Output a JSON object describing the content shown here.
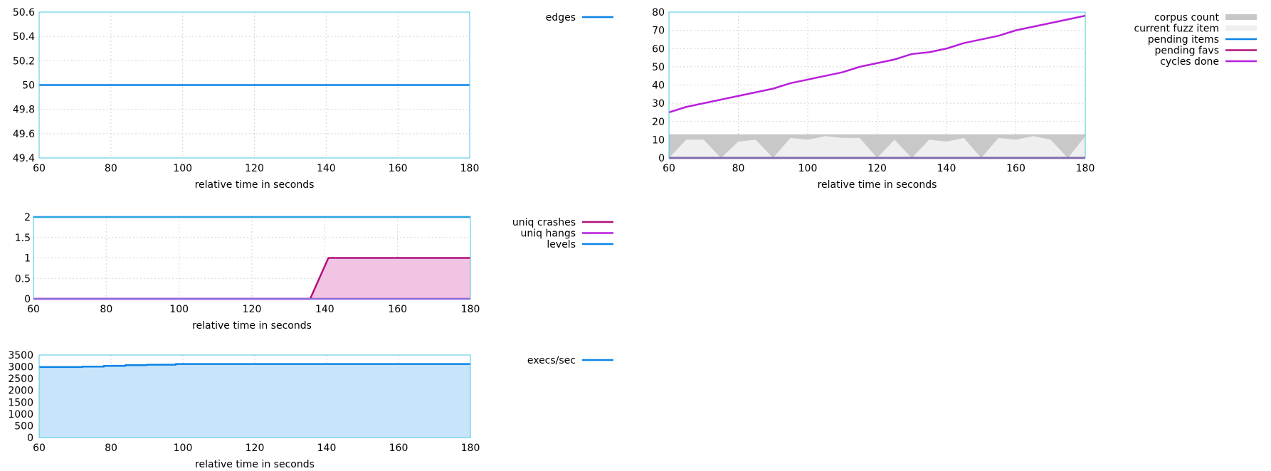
{
  "chart_data": [
    {
      "id": "edges",
      "type": "line",
      "xlabel": "relative time in seconds",
      "ylabel": "",
      "xlim": [
        60,
        180
      ],
      "ylim": [
        49.4,
        50.6
      ],
      "xticks": [
        "60",
        "80",
        "100",
        "120",
        "140",
        "160",
        "180"
      ],
      "yticks": [
        "50.6",
        "50.4",
        "50.2",
        "50",
        "49.8",
        "49.6",
        "49.4"
      ],
      "grid": true,
      "legend_position": "right",
      "series": [
        {
          "name": "edges",
          "color": "#0a84e8",
          "fill": false,
          "x": [
            60,
            180
          ],
          "y": [
            50,
            50
          ]
        }
      ]
    },
    {
      "id": "corpus",
      "type": "line",
      "xlabel": "relative time in seconds",
      "ylabel": "",
      "xlim": [
        60,
        180
      ],
      "ylim": [
        0,
        80
      ],
      "xticks": [
        "60",
        "80",
        "100",
        "120",
        "140",
        "160",
        "180"
      ],
      "yticks": [
        "80",
        "70",
        "60",
        "50",
        "40",
        "30",
        "20",
        "10",
        "0"
      ],
      "grid": true,
      "legend_position": "right",
      "series": [
        {
          "name": "corpus count",
          "color": "#c8c8c8",
          "fill": true,
          "x": [
            60,
            180
          ],
          "y": [
            13,
            13
          ]
        },
        {
          "name": "current fuzz item",
          "color": "#efefef",
          "fill": true,
          "x": [
            60,
            65,
            70,
            75,
            80,
            85,
            90,
            95,
            100,
            105,
            110,
            115,
            120,
            125,
            130,
            135,
            140,
            145,
            150,
            155,
            160,
            165,
            170,
            175,
            180
          ],
          "y": [
            0,
            10,
            10,
            0,
            9,
            10,
            0,
            11,
            10,
            12,
            11,
            11,
            0,
            10,
            0,
            10,
            9,
            11,
            0,
            11,
            10,
            12,
            10,
            0,
            12
          ]
        },
        {
          "name": "pending items",
          "color": "#0a84e8",
          "fill": false,
          "x": [
            60,
            180
          ],
          "y": [
            0,
            0
          ]
        },
        {
          "name": "pending favs",
          "color": "#b0107a",
          "fill": false,
          "x": [
            60,
            180
          ],
          "y": [
            0,
            0
          ]
        },
        {
          "name": "cycles done",
          "color": "#b91fdc",
          "fill": false,
          "x": [
            60,
            65,
            70,
            75,
            80,
            85,
            90,
            95,
            100,
            105,
            110,
            115,
            120,
            125,
            130,
            135,
            140,
            145,
            150,
            155,
            160,
            165,
            170,
            175,
            180
          ],
          "y": [
            25,
            28,
            30,
            32,
            34,
            36,
            38,
            41,
            43,
            45,
            47,
            50,
            52,
            54,
            57,
            58,
            60,
            63,
            65,
            67,
            70,
            72,
            74,
            76,
            78
          ]
        }
      ]
    },
    {
      "id": "crashes",
      "type": "line",
      "xlabel": "relative time in seconds",
      "ylabel": "",
      "xlim": [
        60,
        180
      ],
      "ylim": [
        0,
        2
      ],
      "xticks": [
        "60",
        "80",
        "100",
        "120",
        "140",
        "160",
        "180"
      ],
      "yticks": [
        "2",
        "1.5",
        "1",
        "0.5",
        "0"
      ],
      "grid": true,
      "legend_position": "right",
      "series": [
        {
          "name": "uniq crashes",
          "color": "#b0107a",
          "fill": true,
          "fill_color": "#f1c4e3",
          "x": [
            60,
            136,
            141,
            180
          ],
          "y": [
            0,
            0,
            1,
            1
          ]
        },
        {
          "name": "uniq hangs",
          "color": "#b91fdc",
          "fill": false,
          "x": [
            60,
            180
          ],
          "y": [
            0,
            0
          ]
        },
        {
          "name": "levels",
          "color": "#0a84e8",
          "fill": false,
          "x": [
            60,
            180
          ],
          "y": [
            2,
            2
          ]
        }
      ]
    },
    {
      "id": "execs",
      "type": "area",
      "xlabel": "relative time in seconds",
      "ylabel": "",
      "xlim": [
        60,
        180
      ],
      "ylim": [
        0,
        3500
      ],
      "xticks": [
        "60",
        "80",
        "100",
        "120",
        "140",
        "160",
        "180"
      ],
      "yticks": [
        "3500",
        "3000",
        "2500",
        "2000",
        "1500",
        "1000",
        "500",
        "0"
      ],
      "grid": true,
      "legend_position": "right",
      "series": [
        {
          "name": "execs/sec",
          "color": "#0a84e8",
          "fill": true,
          "fill_color": "#c8e4fa",
          "x": [
            60,
            72,
            72,
            78,
            78,
            84,
            84,
            90,
            90,
            98,
            98,
            180
          ],
          "y": [
            2990,
            2990,
            3010,
            3010,
            3040,
            3040,
            3070,
            3070,
            3090,
            3090,
            3120,
            3120
          ]
        }
      ]
    }
  ]
}
